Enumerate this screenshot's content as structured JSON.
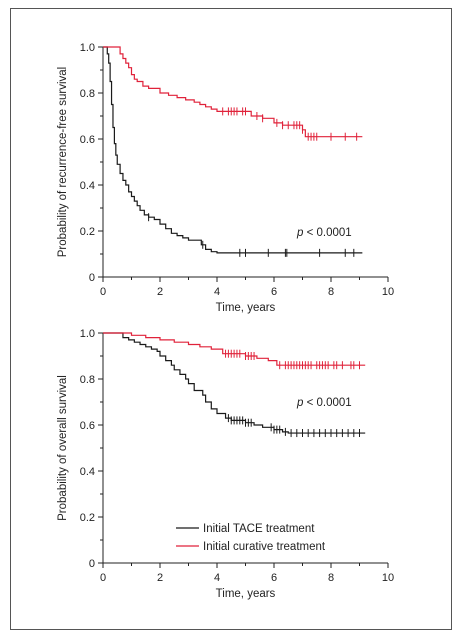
{
  "colors": {
    "tace": "#1a1a1a",
    "curative": "#e0223a",
    "axis": "#222222",
    "frame": "#555555"
  },
  "chart_data": [
    {
      "type": "line",
      "subtype": "kaplan-meier",
      "xlabel": "Time, years",
      "ylabel": "Probability of recurrence-free survival",
      "xlim": [
        0,
        10
      ],
      "ylim": [
        0,
        1
      ],
      "xticks": [
        "0",
        "2",
        "4",
        "6",
        "8",
        "10"
      ],
      "yticks": [
        "0",
        "0.2",
        "0.4",
        "0.6",
        "0.8",
        "1.0"
      ],
      "annotation": {
        "prefix": "p",
        "text": " < 0.0001"
      },
      "series": [
        {
          "key": "tace",
          "points": [
            [
              0,
              1.0
            ],
            [
              0.15,
              0.97
            ],
            [
              0.2,
              0.93
            ],
            [
              0.25,
              0.85
            ],
            [
              0.3,
              0.75
            ],
            [
              0.35,
              0.65
            ],
            [
              0.4,
              0.58
            ],
            [
              0.45,
              0.53
            ],
            [
              0.5,
              0.49
            ],
            [
              0.6,
              0.45
            ],
            [
              0.7,
              0.42
            ],
            [
              0.8,
              0.4
            ],
            [
              0.9,
              0.37
            ],
            [
              1.0,
              0.35
            ],
            [
              1.1,
              0.33
            ],
            [
              1.2,
              0.31
            ],
            [
              1.3,
              0.29
            ],
            [
              1.45,
              0.27
            ],
            [
              1.6,
              0.26
            ],
            [
              1.8,
              0.25
            ],
            [
              2.0,
              0.23
            ],
            [
              2.2,
              0.21
            ],
            [
              2.4,
              0.19
            ],
            [
              2.6,
              0.18
            ],
            [
              2.8,
              0.17
            ],
            [
              3.0,
              0.16
            ],
            [
              3.3,
              0.16
            ],
            [
              3.45,
              0.14
            ],
            [
              3.6,
              0.12
            ],
            [
              3.8,
              0.11
            ],
            [
              4.0,
              0.105
            ],
            [
              9.1,
              0.105
            ]
          ],
          "censor": [
            1.6,
            3.5,
            4.8,
            5.0,
            5.8,
            6.4,
            6.45,
            7.6,
            8.5,
            8.8
          ]
        },
        {
          "key": "curative",
          "points": [
            [
              0,
              1.0
            ],
            [
              0.5,
              1.0
            ],
            [
              0.6,
              0.97
            ],
            [
              0.7,
              0.95
            ],
            [
              0.8,
              0.93
            ],
            [
              0.9,
              0.91
            ],
            [
              1.0,
              0.88
            ],
            [
              1.1,
              0.86
            ],
            [
              1.2,
              0.85
            ],
            [
              1.4,
              0.83
            ],
            [
              1.6,
              0.82
            ],
            [
              1.8,
              0.82
            ],
            [
              2.0,
              0.8
            ],
            [
              2.3,
              0.79
            ],
            [
              2.6,
              0.78
            ],
            [
              2.9,
              0.77
            ],
            [
              3.2,
              0.76
            ],
            [
              3.4,
              0.75
            ],
            [
              3.6,
              0.74
            ],
            [
              3.8,
              0.73
            ],
            [
              4.0,
              0.72
            ],
            [
              5.0,
              0.72
            ],
            [
              5.2,
              0.7
            ],
            [
              5.6,
              0.69
            ],
            [
              6.0,
              0.67
            ],
            [
              6.3,
              0.66
            ],
            [
              6.8,
              0.66
            ],
            [
              7.0,
              0.64
            ],
            [
              7.1,
              0.61
            ],
            [
              9.1,
              0.61
            ]
          ],
          "censor": [
            4.2,
            4.4,
            4.5,
            4.6,
            4.7,
            4.9,
            5.0,
            5.4,
            5.6,
            6.1,
            6.3,
            6.5,
            6.7,
            6.8,
            6.9,
            7.0,
            7.2,
            7.3,
            7.4,
            7.5,
            8.0,
            8.5,
            8.9
          ]
        }
      ]
    },
    {
      "type": "line",
      "subtype": "kaplan-meier",
      "xlabel": "Time, years",
      "ylabel": "Probability of overall survival",
      "xlim": [
        0,
        10
      ],
      "ylim": [
        0,
        1
      ],
      "xticks": [
        "0",
        "2",
        "4",
        "6",
        "8",
        "10"
      ],
      "yticks": [
        "0",
        "0.2",
        "0.4",
        "0.6",
        "0.8",
        "1.0"
      ],
      "annotation": {
        "prefix": "p",
        "text": " < 0.0001"
      },
      "legend": [
        "Initial TACE treatment",
        "Initial curative treatment"
      ],
      "series": [
        {
          "key": "tace",
          "name": "Initial TACE treatment",
          "points": [
            [
              0,
              1.0
            ],
            [
              0.6,
              1.0
            ],
            [
              0.7,
              0.98
            ],
            [
              0.9,
              0.97
            ],
            [
              1.1,
              0.96
            ],
            [
              1.3,
              0.95
            ],
            [
              1.5,
              0.94
            ],
            [
              1.7,
              0.93
            ],
            [
              1.9,
              0.92
            ],
            [
              2.0,
              0.9
            ],
            [
              2.2,
              0.88
            ],
            [
              2.4,
              0.86
            ],
            [
              2.5,
              0.84
            ],
            [
              2.7,
              0.82
            ],
            [
              2.9,
              0.8
            ],
            [
              3.0,
              0.78
            ],
            [
              3.2,
              0.75
            ],
            [
              3.5,
              0.73
            ],
            [
              3.6,
              0.7
            ],
            [
              3.8,
              0.67
            ],
            [
              4.0,
              0.65
            ],
            [
              4.3,
              0.63
            ],
            [
              4.5,
              0.62
            ],
            [
              5.0,
              0.61
            ],
            [
              5.3,
              0.6
            ],
            [
              5.6,
              0.59
            ],
            [
              6.0,
              0.58
            ],
            [
              6.3,
              0.57
            ],
            [
              6.5,
              0.565
            ],
            [
              9.2,
              0.565
            ]
          ],
          "censor": [
            4.4,
            4.5,
            4.6,
            4.7,
            4.8,
            4.9,
            5.0,
            5.1,
            5.2,
            5.9,
            6.0,
            6.1,
            6.2,
            6.4,
            6.6,
            6.8,
            7.0,
            7.2,
            7.4,
            7.6,
            7.8,
            8.0,
            8.2,
            8.4,
            8.6,
            8.8,
            9.0
          ]
        },
        {
          "key": "curative",
          "name": "Initial curative treatment",
          "points": [
            [
              0,
              1.0
            ],
            [
              0.9,
              1.0
            ],
            [
              1.0,
              0.99
            ],
            [
              1.5,
              0.98
            ],
            [
              2.0,
              0.97
            ],
            [
              2.5,
              0.96
            ],
            [
              3.0,
              0.95
            ],
            [
              3.4,
              0.94
            ],
            [
              3.8,
              0.93
            ],
            [
              4.2,
              0.91
            ],
            [
              5.0,
              0.9
            ],
            [
              5.4,
              0.89
            ],
            [
              5.8,
              0.88
            ],
            [
              6.1,
              0.86
            ],
            [
              9.2,
              0.86
            ]
          ],
          "censor": [
            4.3,
            4.4,
            4.5,
            4.6,
            4.7,
            4.8,
            5.0,
            5.1,
            5.2,
            5.3,
            6.2,
            6.4,
            6.5,
            6.6,
            6.7,
            6.8,
            6.9,
            7.0,
            7.1,
            7.2,
            7.3,
            7.5,
            7.6,
            7.7,
            7.8,
            7.9,
            8.1,
            8.2,
            8.4,
            8.7,
            8.8,
            9.0
          ]
        }
      ]
    }
  ]
}
